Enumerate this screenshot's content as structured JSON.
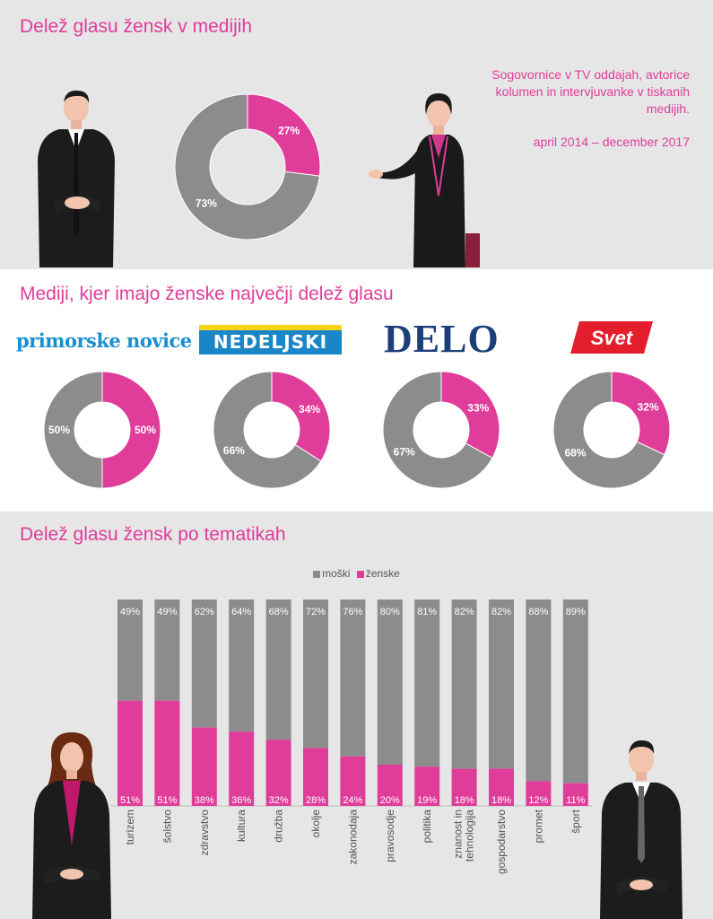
{
  "colors": {
    "pink": "#e03c9a",
    "grey": "#8c8c8c",
    "darkgrey": "#7d7d7d"
  },
  "section1": {
    "title": "Delež glasu žensk v medijih",
    "description": "Sogovornice v TV oddajah, avtorice kolumen in intervjuvanke v tiskanih medijih.",
    "period": "april 2014 – december 2017"
  },
  "section2": {
    "title": "Mediji, kjer imajo ženske največji delež glasu",
    "logos": [
      "primorske novice",
      "NEDELJSKI",
      "DELO",
      "Svet"
    ]
  },
  "section3": {
    "title": "Delež glasu žensk po tematikah"
  },
  "chart_data": [
    {
      "type": "pie",
      "categories": [
        "ženske",
        "moški"
      ],
      "values": [
        27,
        73
      ]
    },
    {
      "type": "pie",
      "title": "primorske novice",
      "categories": [
        "ženske",
        "moški"
      ],
      "values": [
        50,
        50
      ]
    },
    {
      "type": "pie",
      "title": "NEDELJSKI",
      "categories": [
        "ženske",
        "moški"
      ],
      "values": [
        34,
        66
      ]
    },
    {
      "type": "pie",
      "title": "DELO",
      "categories": [
        "ženske",
        "moški"
      ],
      "values": [
        33,
        67
      ]
    },
    {
      "type": "pie",
      "title": "Svet",
      "categories": [
        "ženske",
        "moški"
      ],
      "values": [
        32,
        68
      ]
    },
    {
      "type": "bar",
      "stacked": true,
      "categories": [
        "turizem",
        "šolstvo",
        "zdravstvo",
        "kultura",
        "družba",
        "okolje",
        "zakonodaja",
        "pravosodje",
        "politika",
        "znanost in tehnologija",
        "gospodarstvo",
        "promet",
        "šport"
      ],
      "series": [
        {
          "name": "moški",
          "values": [
            49,
            49,
            62,
            64,
            68,
            72,
            76,
            80,
            81,
            82,
            82,
            88,
            89
          ]
        },
        {
          "name": "ženske",
          "values": [
            51,
            51,
            38,
            36,
            32,
            28,
            24,
            20,
            19,
            18,
            18,
            12,
            11
          ]
        }
      ],
      "ylim": [
        0,
        100
      ],
      "legend": "top-center"
    }
  ]
}
